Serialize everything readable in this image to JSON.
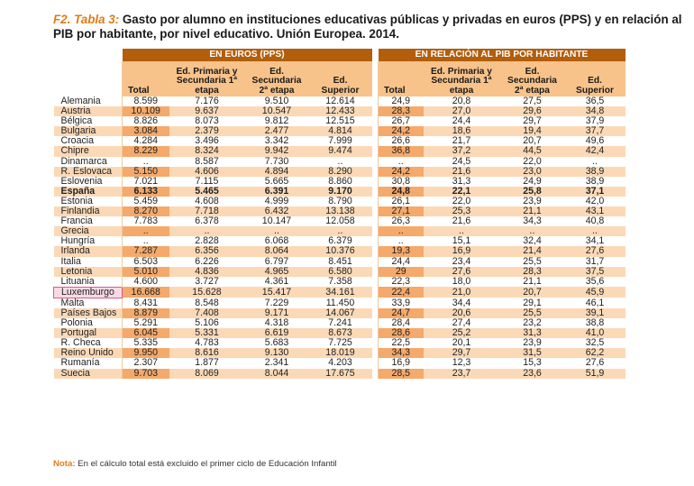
{
  "title": {
    "label": "F2. Tabla 3:",
    "text": " Gasto por alumno en instituciones educativas públicas y privadas en euros (PPS) y en relación al PIB por habitante, por nivel educativo. Unión Europea. 2014."
  },
  "group_headers": [
    "EN EUROS (PPS)",
    "EN RELACIÓN AL PIB POR HABITANTE"
  ],
  "columns": [
    [
      "Total"
    ],
    [
      "Ed. Primaria y",
      "Secundaria 1ª",
      "etapa"
    ],
    [
      "Ed.",
      "Secundaria",
      "2ª etapa"
    ],
    [
      "Ed.",
      "Superior"
    ],
    [
      "Total"
    ],
    [
      "Ed. Primaria y",
      "Secundaria 1ª",
      "etapa"
    ],
    [
      "Ed.",
      "Secundaria",
      "2ª etapa"
    ],
    [
      "Ed.",
      "Superior"
    ]
  ],
  "rows": [
    {
      "country": "Alemania",
      "v": [
        "8.599",
        "7.176",
        "9.510",
        "12.614",
        "24,9",
        "20,8",
        "27,5",
        "36,5"
      ]
    },
    {
      "country": "Austria",
      "v": [
        "10.109",
        "9.637",
        "10.547",
        "12.433",
        "28,3",
        "27,0",
        "29,6",
        "34,8"
      ]
    },
    {
      "country": "Bélgica",
      "v": [
        "8.826",
        "8.073",
        "9.812",
        "12.515",
        "26,7",
        "24,4",
        "29,7",
        "37,9"
      ]
    },
    {
      "country": "Bulgaria",
      "v": [
        "3.084",
        "2.379",
        "2.477",
        "4.814",
        "24,2",
        "18,6",
        "19,4",
        "37,7"
      ]
    },
    {
      "country": "Croacia",
      "v": [
        "4.284",
        "3.496",
        "3.342",
        "7.999",
        "26,6",
        "21,7",
        "20,7",
        "49,6"
      ]
    },
    {
      "country": "Chipre",
      "v": [
        "8.229",
        "8.324",
        "9.942",
        "9.474",
        "36,8",
        "37,2",
        "44,5",
        "42,4"
      ]
    },
    {
      "country": "Dinamarca",
      "v": [
        "..",
        "8.587",
        "7.730",
        "..",
        "..",
        "24,5",
        "22,0",
        ".."
      ]
    },
    {
      "country": "R. Eslovaca",
      "v": [
        "5.150",
        "4.606",
        "4.894",
        "8.290",
        "24,2",
        "21,6",
        "23,0",
        "38,9"
      ]
    },
    {
      "country": "Eslovenia",
      "v": [
        "7.021",
        "7.115",
        "5.665",
        "8.860",
        "30,8",
        "31,3",
        "24,9",
        "38,9"
      ]
    },
    {
      "country": "España",
      "v": [
        "6.133",
        "5.465",
        "6.391",
        "9.170",
        "24,8",
        "22,1",
        "25,8",
        "37,1"
      ],
      "bold": true
    },
    {
      "country": "Estonia",
      "v": [
        "5.459",
        "4.608",
        "4.999",
        "8.790",
        "26,1",
        "22,0",
        "23,9",
        "42,0"
      ]
    },
    {
      "country": "Finlandia",
      "v": [
        "8.270",
        "7.718",
        "6.432",
        "13.138",
        "27,1",
        "25,3",
        "21,1",
        "43,1"
      ]
    },
    {
      "country": "Francia",
      "v": [
        "7.783",
        "6.378",
        "10.147",
        "12.058",
        "26,3",
        "21,6",
        "34,3",
        "40,8"
      ]
    },
    {
      "country": "Grecia",
      "v": [
        "..",
        "..",
        "..",
        "..",
        "..",
        "..",
        "..",
        ".."
      ]
    },
    {
      "country": "Hungría",
      "v": [
        "..",
        "2.828",
        "6.068",
        "6.379",
        "..",
        "15,1",
        "32,4",
        "34,1"
      ]
    },
    {
      "country": "Irlanda",
      "v": [
        "7.287",
        "6.356",
        "8.064",
        "10.376",
        "19,3",
        "16,9",
        "21,4",
        "27,6"
      ]
    },
    {
      "country": "Italia",
      "v": [
        "6.503",
        "6.226",
        "6.797",
        "8.451",
        "24,4",
        "23,4",
        "25,5",
        "31,7"
      ]
    },
    {
      "country": "Letonia",
      "v": [
        "5.010",
        "4.836",
        "4.965",
        "6.580",
        "29",
        "27,6",
        "28,3",
        "37,5"
      ]
    },
    {
      "country": "Lituania",
      "v": [
        "4.600",
        "3.727",
        "4.361",
        "7.358",
        "22,3",
        "18,0",
        "21,1",
        "35,6"
      ]
    },
    {
      "country": "Luxemburgo",
      "v": [
        "16.668",
        "15.628",
        "15.417",
        "34.161",
        "22,4",
        "21,0",
        "20,7",
        "45,9"
      ],
      "highlight": true
    },
    {
      "country": "Malta",
      "v": [
        "8.431",
        "8.548",
        "7.229",
        "11.450",
        "33,9",
        "34,4",
        "29,1",
        "46,1"
      ]
    },
    {
      "country": "Países Bajos",
      "v": [
        "8.879",
        "7.408",
        "9.171",
        "14.067",
        "24,7",
        "20,6",
        "25,5",
        "39,1"
      ]
    },
    {
      "country": "Polonia",
      "v": [
        "5.291",
        "5.106",
        "4.318",
        "7.241",
        "28,4",
        "27,4",
        "23,2",
        "38,8"
      ]
    },
    {
      "country": "Portugal",
      "v": [
        "6.045",
        "5.331",
        "6.619",
        "8.673",
        "28,6",
        "25,2",
        "31,3",
        "41,0"
      ]
    },
    {
      "country": "R. Checa",
      "v": [
        "5.335",
        "4.783",
        "5.683",
        "7.725",
        "22,5",
        "20,1",
        "23,9",
        "32,5"
      ]
    },
    {
      "country": "Reino Unido",
      "v": [
        "9.950",
        "8.616",
        "9.130",
        "18.019",
        "34,3",
        "29,7",
        "31,5",
        "62,2"
      ]
    },
    {
      "country": "Rumanía",
      "v": [
        "2.307",
        "1.877",
        "2.341",
        "4.203",
        "16,9",
        "12,3",
        "15,3",
        "27,6"
      ]
    },
    {
      "country": "Suecia",
      "v": [
        "9.703",
        "8.069",
        "8.044",
        "17.675",
        "28,5",
        "23,7",
        "23,6",
        "51,9"
      ]
    }
  ],
  "note": {
    "label": "Nota:",
    "text": " En el cálculo total está excluido el primer ciclo de Educación Infantil"
  },
  "colors": {
    "accent": "#e07b17",
    "header_dark": "#b25e0c",
    "header_light": "#f8c38a",
    "row_band": "#fbd9b6",
    "total_band": "#f5a96a",
    "highlight": "#d85a8a"
  }
}
